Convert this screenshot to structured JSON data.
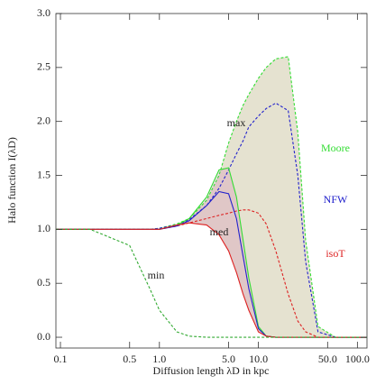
{
  "chart_data": {
    "type": "line",
    "xlabel": "Diffusion length λD in kpc",
    "ylabel": "Halo function I(λD)",
    "xscale": "log",
    "xlim": [
      0.09,
      125
    ],
    "ylim": [
      -0.1,
      3.0
    ],
    "xticks": [
      0.1,
      0.5,
      {
        "value": 1,
        "label": "1.0"
      },
      {
        "value": 5,
        "label": "5.0"
      },
      {
        "value": 10,
        "label": "10.0"
      },
      {
        "value": 50,
        "label": "50.0"
      },
      {
        "value": 100,
        "label": "100.0"
      }
    ],
    "yticks": [
      {
        "value": 0,
        "label": "0.0"
      },
      0.5,
      {
        "value": 1,
        "label": "1.0"
      },
      1.5,
      {
        "value": 2,
        "label": "2.0"
      },
      2.5,
      {
        "value": 3,
        "label": "3.0"
      }
    ],
    "x": [
      0.09,
      0.2,
      0.5,
      0.8,
      1,
      1.5,
      2,
      3,
      4,
      5,
      6,
      7,
      8,
      10,
      12,
      15,
      20,
      25,
      30,
      40,
      60,
      125
    ],
    "series": [
      {
        "name": "Moore",
        "color": "#33dd33",
        "dashed": true,
        "values": [
          1,
          1,
          1,
          1,
          1.01,
          1.05,
          1.1,
          1.27,
          1.5,
          1.8,
          2.0,
          2.15,
          2.25,
          2.4,
          2.5,
          2.58,
          2.6,
          1.9,
          0.9,
          0.1,
          0,
          0
        ]
      },
      {
        "name": "NFW",
        "color": "#2222cc",
        "dashed": true,
        "values": [
          1,
          1,
          1,
          1,
          1.01,
          1.04,
          1.09,
          1.22,
          1.38,
          1.55,
          1.7,
          1.82,
          1.95,
          2.05,
          2.12,
          2.17,
          2.1,
          1.5,
          0.7,
          0.05,
          0,
          0
        ]
      },
      {
        "name": "isoT",
        "color": "#dd2222",
        "dashed": true,
        "values": [
          1,
          1,
          1,
          1,
          1.0,
          1.03,
          1.06,
          1.1,
          1.13,
          1.15,
          1.17,
          1.18,
          1.18,
          1.15,
          1.05,
          0.8,
          0.4,
          0.15,
          0.05,
          0,
          0,
          0
        ]
      },
      {
        "name": "Moore",
        "color": "#33dd33",
        "dashed": false,
        "values": [
          1,
          1,
          1,
          1,
          1.0,
          1.04,
          1.1,
          1.3,
          1.55,
          1.57,
          1.3,
          0.9,
          0.55,
          0.1,
          0.01,
          0,
          0,
          0,
          0,
          0,
          0,
          0
        ]
      },
      {
        "name": "NFW",
        "color": "#2222cc",
        "dashed": false,
        "values": [
          1,
          1,
          1,
          1,
          1.0,
          1.03,
          1.08,
          1.22,
          1.35,
          1.33,
          1.1,
          0.75,
          0.45,
          0.08,
          0.01,
          0,
          0,
          0,
          0,
          0,
          0,
          0
        ]
      },
      {
        "name": "isoT",
        "color": "#dd2222",
        "dashed": false,
        "values": [
          1,
          1,
          1,
          1,
          1.0,
          1.04,
          1.06,
          1.04,
          0.95,
          0.8,
          0.6,
          0.4,
          0.25,
          0.05,
          0.01,
          0,
          0,
          0,
          0,
          0,
          0,
          0
        ]
      },
      {
        "color": "#33aa33",
        "dashed": true,
        "values": [
          1,
          1,
          0.85,
          0.45,
          0.25,
          0.05,
          0.01,
          0,
          0,
          0,
          0,
          0,
          0,
          0,
          0,
          0,
          0,
          0,
          0,
          0,
          0,
          0
        ]
      }
    ],
    "annotations": [
      "max",
      "med",
      "min"
    ]
  }
}
